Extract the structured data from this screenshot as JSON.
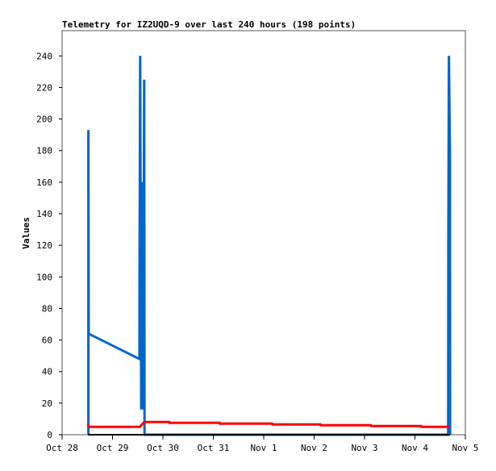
{
  "chart_data": {
    "type": "line",
    "title": "Telemetry for IZ2UQD-9 over last 240 hours (198 points)",
    "xlabel": "",
    "ylabel": "Values",
    "xlim": [
      "Oct 28 00:00",
      "Nov 5 00:00"
    ],
    "ylim": [
      0,
      256
    ],
    "x_ticks": [
      "Oct 28",
      "Oct 29",
      "Oct 30",
      "Oct 31",
      "Nov 1",
      "Nov 2",
      "Nov 3",
      "Nov 4",
      "Nov 5"
    ],
    "y_ticks": [
      0,
      20,
      40,
      60,
      80,
      100,
      120,
      140,
      160,
      180,
      200,
      220,
      240
    ],
    "grid": false,
    "legend": "none",
    "series": [
      {
        "color": "#0066cc",
        "points": [
          [
            "Oct 28 12:30",
            0
          ],
          [
            "Oct 28 12:31",
            193
          ],
          [
            "Oct 28 12:40",
            64
          ],
          [
            "Oct 29 12:50",
            48
          ],
          [
            "Oct 29 12:52",
            97
          ],
          [
            "Oct 29 13:10",
            240
          ],
          [
            "Oct 29 13:40",
            16
          ],
          [
            "Oct 29 14:20",
            160
          ],
          [
            "Oct 29 14:40",
            16
          ],
          [
            "Oct 29 15:05",
            225
          ],
          [
            "Oct 29 15:15",
            0
          ],
          [
            "Nov 4 15:50",
            0
          ],
          [
            "Nov 4 15:55",
            121
          ],
          [
            "Nov 4 16:10",
            240
          ],
          [
            "Nov 4 16:40",
            177
          ],
          [
            "Nov 4 16:45",
            0
          ]
        ]
      },
      {
        "color": "#ff0000",
        "points": [
          [
            "Oct 28 12:20",
            7
          ],
          [
            "Oct 28 12:35",
            5
          ],
          [
            "Oct 29 13:00",
            5
          ],
          [
            "Oct 29 15:10",
            8
          ],
          [
            "Oct 30 03:00",
            8
          ],
          [
            "Oct 30 03:10",
            7.5
          ],
          [
            "Oct 31 03:00",
            7.5
          ],
          [
            "Oct 31 03:10",
            7
          ],
          [
            "Nov 1 04:00",
            7
          ],
          [
            "Nov 1 04:10",
            6.5
          ],
          [
            "Nov 2 03:00",
            6.5
          ],
          [
            "Nov 2 03:10",
            6
          ],
          [
            "Nov 3 03:00",
            6
          ],
          [
            "Nov 3 03:10",
            5.5
          ],
          [
            "Nov 4 03:00",
            5.5
          ],
          [
            "Nov 4 03:10",
            5
          ],
          [
            "Nov 4 16:40",
            5
          ]
        ]
      },
      {
        "color": "#000000",
        "points": [
          [
            "Oct 28 12:20",
            0
          ],
          [
            "Nov 4 16:45",
            0
          ]
        ]
      }
    ]
  }
}
